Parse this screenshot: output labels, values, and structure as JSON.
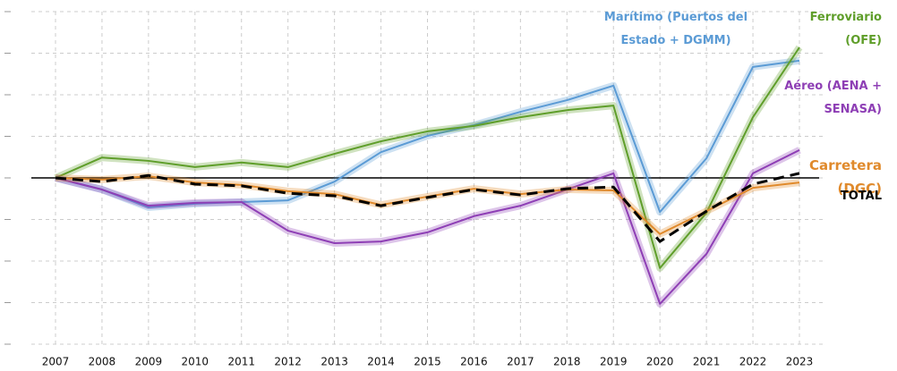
{
  "chart_data": {
    "type": "line",
    "categories": [
      "2007",
      "2008",
      "2009",
      "2010",
      "2011",
      "2012",
      "2013",
      "2014",
      "2015",
      "2016",
      "2017",
      "2018",
      "2019",
      "2020",
      "2021",
      "2022",
      "2023"
    ],
    "ylim": [
      -40,
      40
    ],
    "yticks": [
      -40,
      -30,
      -20,
      -10,
      0,
      10,
      20,
      30,
      40
    ],
    "grid": true,
    "series": [
      {
        "name": "Marítimo (Puertos del Estado + DGMM)",
        "color": "#5b9bd5",
        "values": [
          0,
          -2.8,
          -7.1,
          -6.2,
          -5.8,
          -5.4,
          -0.9,
          6.2,
          10.1,
          12.7,
          15.9,
          18.7,
          22.2,
          -8.2,
          4.7,
          26.7,
          28.2
        ]
      },
      {
        "name": "Ferroviario (OFE)",
        "color": "#5f9e2a",
        "values": [
          0,
          4.9,
          4.1,
          2.6,
          3.7,
          2.6,
          5.8,
          8.8,
          11.2,
          12.5,
          14.6,
          16.3,
          17.4,
          -21.7,
          -8.4,
          14.6,
          31.4
        ]
      },
      {
        "name": "Aéreo (AENA + SENASA)",
        "color": "#8e3fb5",
        "values": [
          0,
          -2.8,
          -6.7,
          -6.0,
          -5.8,
          -12.7,
          -15.7,
          -15.3,
          -13.1,
          -9.2,
          -6.7,
          -2.8,
          1.1,
          -30.3,
          -18.3,
          1.1,
          6.7
        ]
      },
      {
        "name": "Carretera (DGC)",
        "color": "#e08a2c",
        "values": [
          0,
          -0.4,
          0.4,
          -1.1,
          -1.7,
          -3.2,
          -3.9,
          -6.5,
          -4.5,
          -2.6,
          -3.9,
          -2.8,
          -3.0,
          -13.5,
          -8.0,
          -2.4,
          -1.1
        ]
      },
      {
        "name": "TOTAL",
        "color": "#000000",
        "dashed": true,
        "values": [
          0,
          -0.9,
          0.6,
          -1.5,
          -1.9,
          -3.7,
          -4.3,
          -6.7,
          -4.7,
          -2.8,
          -4.1,
          -2.6,
          -2.2,
          -15.3,
          -8.0,
          -1.5,
          1.1
        ]
      }
    ]
  }
}
